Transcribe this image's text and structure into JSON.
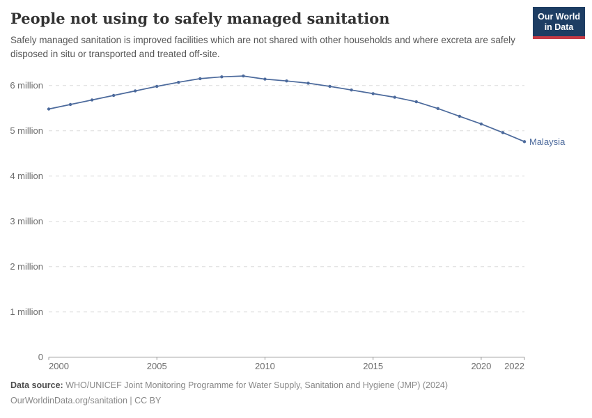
{
  "page": {
    "background": "#ffffff"
  },
  "header": {
    "title": "People not using to safely managed sanitation",
    "subtitle": "Safely managed sanitation is improved facilities which are not shared with other households and where excreta are safely disposed in situ or transported and treated off-site.",
    "logo": {
      "line1": "Our World",
      "line2": "in Data",
      "bg_color": "#1d3d63",
      "accent_color": "#c53a45",
      "text_color": "#ffffff"
    }
  },
  "chart_data": {
    "type": "line",
    "title": "People not using to safely managed sanitation",
    "xlabel": "",
    "ylabel": "",
    "unit": "people (millions)",
    "x": [
      2000,
      2001,
      2002,
      2003,
      2004,
      2005,
      2006,
      2007,
      2008,
      2009,
      2010,
      2011,
      2012,
      2013,
      2014,
      2015,
      2016,
      2017,
      2018,
      2019,
      2020,
      2021,
      2022
    ],
    "series": [
      {
        "name": "Malaysia",
        "color": "#4c6a9c",
        "values": [
          5.48,
          5.58,
          5.68,
          5.78,
          5.88,
          5.98,
          6.07,
          6.15,
          6.19,
          6.21,
          6.14,
          6.1,
          6.05,
          5.98,
          5.9,
          5.82,
          5.74,
          5.64,
          5.49,
          5.32,
          5.15,
          4.96,
          4.76
        ]
      }
    ],
    "x_ticks": [
      2000,
      2005,
      2010,
      2015,
      2020,
      2022
    ],
    "y_ticks": [
      {
        "value": 0,
        "label": "0"
      },
      {
        "value": 1,
        "label": "1 million"
      },
      {
        "value": 2,
        "label": "2 million"
      },
      {
        "value": 3,
        "label": "3 million"
      },
      {
        "value": 4,
        "label": "4 million"
      },
      {
        "value": 5,
        "label": "5 million"
      },
      {
        "value": 6,
        "label": "6 million"
      }
    ],
    "xlim": [
      2000,
      2022
    ],
    "ylim": [
      0,
      6.4
    ],
    "grid": "horizontal-dashed",
    "legend": "end-of-line-label",
    "end_label": "Malaysia",
    "colors": {
      "line": "#4c6a9c",
      "grid": "#dcdcdc",
      "axis": "#999999",
      "tick_labels": "#6e6e6e"
    }
  },
  "footer": {
    "source_label": "Data source:",
    "source_text": "WHO/UNICEF Joint Monitoring Programme for Water Supply, Sanitation and Hygiene (JMP) (2024)",
    "attribution": "OurWorldinData.org/sanitation | CC BY"
  }
}
